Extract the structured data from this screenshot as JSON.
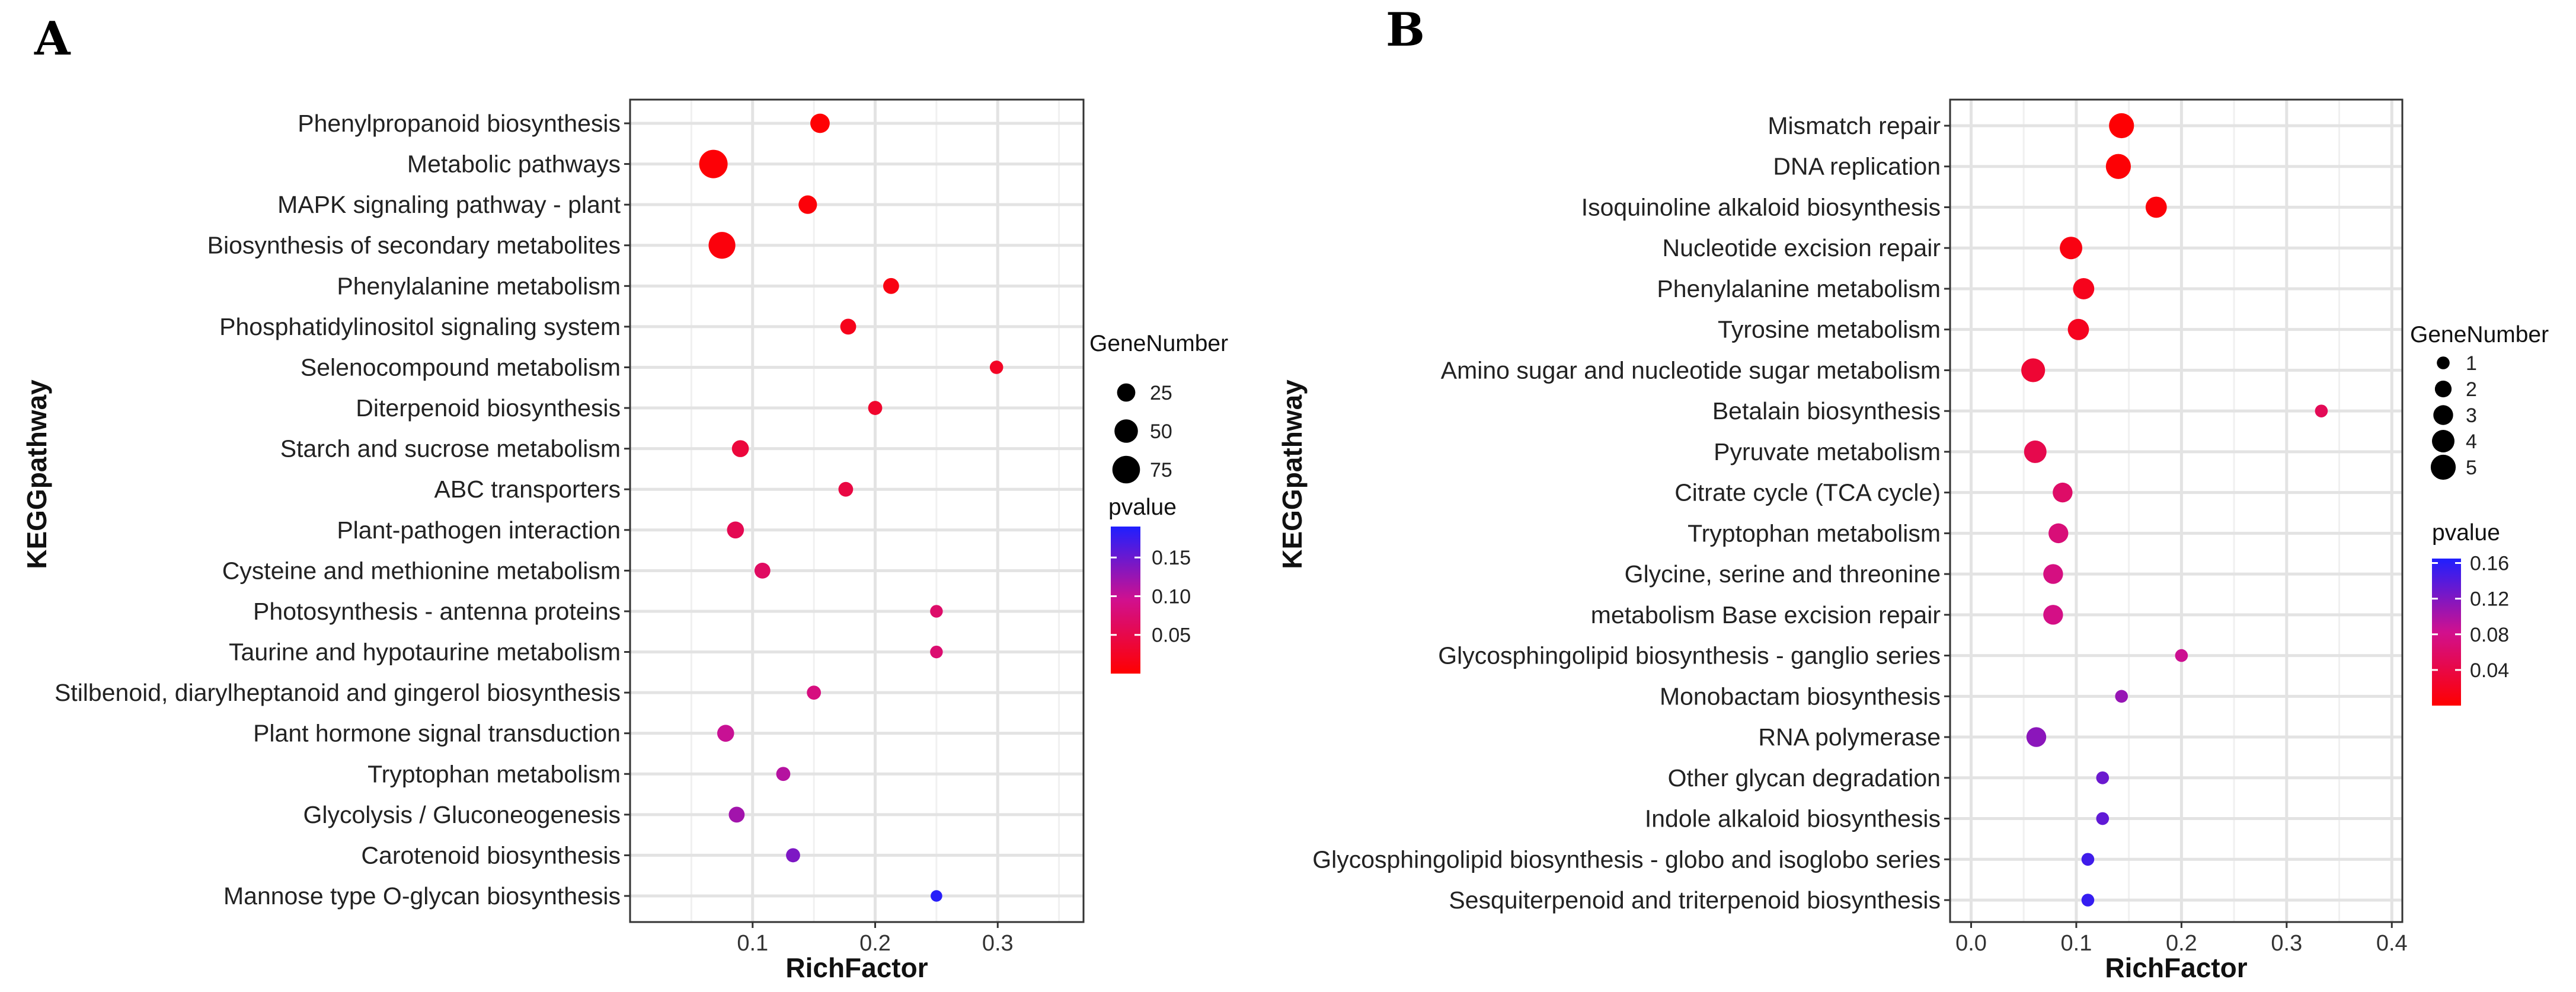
{
  "chart_data": [
    {
      "panel": "A",
      "type": "scatter",
      "xlabel": "RichFactor",
      "ylabel": "KEGGpathway",
      "xlim": [
        0,
        0.37
      ],
      "x_ticks": [
        0.1,
        0.2,
        0.3
      ],
      "x_tick_labels": [
        "0.1",
        "0.2",
        "0.3"
      ],
      "grid": true,
      "size_legend": {
        "title": "GeneNumber",
        "values": [
          25,
          50,
          75
        ],
        "labels": [
          "25",
          "50",
          "75"
        ],
        "size_range": [
          0,
          80
        ]
      },
      "color_legend": {
        "title": "pvalue",
        "range": [
          0.0,
          0.19
        ],
        "ticks": [
          0.05,
          0.1,
          0.15
        ],
        "tick_labels": [
          "0.05",
          "0.10",
          "0.15"
        ],
        "low_color": "#ff0000",
        "high_color": "#1f1fff"
      },
      "points": [
        {
          "pathway": "Phenylpropanoid biosynthesis",
          "rich_factor": 0.155,
          "gene_number": 32,
          "pvalue": 0.003
        },
        {
          "pathway": "Metabolic pathways",
          "rich_factor": 0.068,
          "gene_number": 80,
          "pvalue": 0.004
        },
        {
          "pathway": "MAPK signaling pathway - plant",
          "rich_factor": 0.145,
          "gene_number": 28,
          "pvalue": 0.006
        },
        {
          "pathway": "Biosynthesis of secondary metabolites",
          "rich_factor": 0.075,
          "gene_number": 70,
          "pvalue": 0.008
        },
        {
          "pathway": "Phenylalanine metabolism",
          "rich_factor": 0.213,
          "gene_number": 18,
          "pvalue": 0.012
        },
        {
          "pathway": "Phosphatidylinositol signaling system",
          "rich_factor": 0.178,
          "gene_number": 18,
          "pvalue": 0.018
        },
        {
          "pathway": "Selenocompound metabolism",
          "rich_factor": 0.299,
          "gene_number": 10,
          "pvalue": 0.025
        },
        {
          "pathway": "Diterpenoid biosynthesis",
          "rich_factor": 0.2,
          "gene_number": 12,
          "pvalue": 0.03
        },
        {
          "pathway": "Starch and sucrose metabolism",
          "rich_factor": 0.09,
          "gene_number": 22,
          "pvalue": 0.04
        },
        {
          "pathway": "ABC transporters",
          "rich_factor": 0.176,
          "gene_number": 14,
          "pvalue": 0.045
        },
        {
          "pathway": "Plant-pathogen interaction",
          "rich_factor": 0.086,
          "gene_number": 22,
          "pvalue": 0.055
        },
        {
          "pathway": "Cysteine and methionine metabolism",
          "rich_factor": 0.108,
          "gene_number": 18,
          "pvalue": 0.065
        },
        {
          "pathway": "Photosynthesis - antenna proteins",
          "rich_factor": 0.25,
          "gene_number": 8,
          "pvalue": 0.07
        },
        {
          "pathway": "Taurine and hypotaurine metabolism",
          "rich_factor": 0.25,
          "gene_number": 8,
          "pvalue": 0.075
        },
        {
          "pathway": "Stilbenoid, diarylheptanoid and gingerol biosynthesis",
          "rich_factor": 0.15,
          "gene_number": 12,
          "pvalue": 0.085
        },
        {
          "pathway": "Plant hormone signal transduction",
          "rich_factor": 0.078,
          "gene_number": 22,
          "pvalue": 0.1
        },
        {
          "pathway": "Tryptophan metabolism",
          "rich_factor": 0.125,
          "gene_number": 12,
          "pvalue": 0.11
        },
        {
          "pathway": "Glycolysis / Gluconeogenesis",
          "rich_factor": 0.087,
          "gene_number": 18,
          "pvalue": 0.12
        },
        {
          "pathway": "Carotenoid biosynthesis",
          "rich_factor": 0.133,
          "gene_number": 12,
          "pvalue": 0.14
        },
        {
          "pathway": "Mannose type O-glycan biosynthesis",
          "rich_factor": 0.25,
          "gene_number": 5,
          "pvalue": 0.185
        }
      ]
    },
    {
      "panel": "B",
      "type": "scatter",
      "xlabel": "RichFactor",
      "ylabel": "KEGGpathway",
      "xlim": [
        -0.02,
        0.41
      ],
      "x_ticks": [
        0.0,
        0.1,
        0.2,
        0.3,
        0.4
      ],
      "x_tick_labels": [
        "0.0",
        "0.1",
        "0.2",
        "0.3",
        "0.4"
      ],
      "grid": true,
      "size_legend": {
        "title": "GeneNumber",
        "values": [
          1,
          2,
          3,
          4,
          5
        ],
        "labels": [
          "1",
          "2",
          "3",
          "4",
          "5"
        ],
        "size_range": [
          0,
          5.5
        ]
      },
      "color_legend": {
        "title": "pvalue",
        "range": [
          0.0,
          0.165
        ],
        "ticks": [
          0.04,
          0.08,
          0.12,
          0.16
        ],
        "tick_labels": [
          "0.04",
          "0.08",
          "0.12",
          "0.16"
        ],
        "low_color": "#ff0000",
        "high_color": "#1f1fff"
      },
      "points": [
        {
          "pathway": "Mismatch repair",
          "rich_factor": 0.143,
          "gene_number": 5,
          "pvalue": 0.002
        },
        {
          "pathway": "DNA replication",
          "rich_factor": 0.14,
          "gene_number": 5,
          "pvalue": 0.003
        },
        {
          "pathway": "Isoquinoline alkaloid biosynthesis",
          "rich_factor": 0.176,
          "gene_number": 3.5,
          "pvalue": 0.005
        },
        {
          "pathway": "Nucleotide excision repair",
          "rich_factor": 0.095,
          "gene_number": 4,
          "pvalue": 0.01
        },
        {
          "pathway": "Phenylalanine metabolism",
          "rich_factor": 0.107,
          "gene_number": 3.5,
          "pvalue": 0.016
        },
        {
          "pathway": "Tyrosine metabolism",
          "rich_factor": 0.102,
          "gene_number": 3.5,
          "pvalue": 0.018
        },
        {
          "pathway": "Amino sugar and nucleotide sugar metabolism",
          "rich_factor": 0.059,
          "gene_number": 4.5,
          "pvalue": 0.03
        },
        {
          "pathway": "Betalain biosynthesis",
          "rich_factor": 0.333,
          "gene_number": 1,
          "pvalue": 0.05
        },
        {
          "pathway": "Pyruvate metabolism",
          "rich_factor": 0.061,
          "gene_number": 4,
          "pvalue": 0.045
        },
        {
          "pathway": "Citrate cycle (TCA cycle)",
          "rich_factor": 0.087,
          "gene_number": 3,
          "pvalue": 0.06
        },
        {
          "pathway": "Tryptophan metabolism",
          "rich_factor": 0.083,
          "gene_number": 3,
          "pvalue": 0.07
        },
        {
          "pathway": "Glycine, serine and threonine",
          "rich_factor": 0.078,
          "gene_number": 3,
          "pvalue": 0.075
        },
        {
          "pathway": "metabolism Base excision repair",
          "rich_factor": 0.078,
          "gene_number": 3,
          "pvalue": 0.078
        },
        {
          "pathway": "Glycosphingolipid biosynthesis - ganglio series",
          "rich_factor": 0.2,
          "gene_number": 1,
          "pvalue": 0.085
        },
        {
          "pathway": "Monobactam biosynthesis",
          "rich_factor": 0.143,
          "gene_number": 1,
          "pvalue": 0.11
        },
        {
          "pathway": "RNA polymerase",
          "rich_factor": 0.062,
          "gene_number": 3,
          "pvalue": 0.115
        },
        {
          "pathway": "Other glycan degradation",
          "rich_factor": 0.125,
          "gene_number": 1,
          "pvalue": 0.13
        },
        {
          "pathway": "Indole alkaloid biosynthesis",
          "rich_factor": 0.125,
          "gene_number": 1,
          "pvalue": 0.135
        },
        {
          "pathway": "Glycosphingolipid biosynthesis - globo and isoglobo series",
          "rich_factor": 0.111,
          "gene_number": 1,
          "pvalue": 0.15
        },
        {
          "pathway": "Sesquiterpenoid and triterpenoid biosynthesis",
          "rich_factor": 0.111,
          "gene_number": 1,
          "pvalue": 0.155
        }
      ]
    }
  ]
}
